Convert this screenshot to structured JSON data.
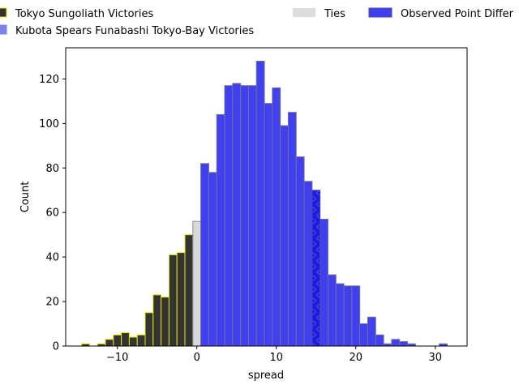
{
  "chart_data": {
    "type": "bar",
    "xlabel": "spread",
    "ylabel": "Count",
    "xlim": [
      -16.5,
      34
    ],
    "ylim": [
      0,
      134
    ],
    "xticks": [
      -10,
      0,
      10,
      20,
      30
    ],
    "yticks": [
      0,
      20,
      40,
      60,
      80,
      100,
      120
    ],
    "bin_width": 1,
    "legend_placement": "top, above plot",
    "series": [
      {
        "name": "Tokyo Sungoliath Victories",
        "fill": "#333333",
        "edge": "#e6e600",
        "bins": [
          {
            "x": -14,
            "count": 1
          },
          {
            "x": -13,
            "count": 0
          },
          {
            "x": -12,
            "count": 1
          },
          {
            "x": -11,
            "count": 3
          },
          {
            "x": -10,
            "count": 5
          },
          {
            "x": -9,
            "count": 6
          },
          {
            "x": -8,
            "count": 4
          },
          {
            "x": -7,
            "count": 5
          },
          {
            "x": -6,
            "count": 15
          },
          {
            "x": -5,
            "count": 23
          },
          {
            "x": -4,
            "count": 22
          },
          {
            "x": -3,
            "count": 41
          },
          {
            "x": -2,
            "count": 42
          },
          {
            "x": -1,
            "count": 50
          }
        ]
      },
      {
        "name": "Ties",
        "fill": "#d9d9d9",
        "edge": "#888888",
        "bins": [
          {
            "x": 0,
            "count": 56
          }
        ]
      },
      {
        "name": "Kubota Spears Funabashi Tokyo-Bay Victories",
        "fill": "#4040f0",
        "edge": "#707090",
        "bins": [
          {
            "x": 1,
            "count": 82
          },
          {
            "x": 2,
            "count": 78
          },
          {
            "x": 3,
            "count": 104
          },
          {
            "x": 4,
            "count": 117
          },
          {
            "x": 5,
            "count": 118
          },
          {
            "x": 6,
            "count": 117
          },
          {
            "x": 7,
            "count": 117
          },
          {
            "x": 8,
            "count": 128
          },
          {
            "x": 9,
            "count": 109
          },
          {
            "x": 10,
            "count": 116
          },
          {
            "x": 11,
            "count": 99
          },
          {
            "x": 12,
            "count": 105
          },
          {
            "x": 13,
            "count": 85
          },
          {
            "x": 14,
            "count": 74
          },
          {
            "x": 16,
            "count": 57
          },
          {
            "x": 17,
            "count": 32
          },
          {
            "x": 18,
            "count": 28
          },
          {
            "x": 19,
            "count": 27
          },
          {
            "x": 20,
            "count": 27
          },
          {
            "x": 21,
            "count": 10
          },
          {
            "x": 22,
            "count": 13
          },
          {
            "x": 23,
            "count": 5
          },
          {
            "x": 24,
            "count": 1
          },
          {
            "x": 25,
            "count": 3
          },
          {
            "x": 26,
            "count": 2
          },
          {
            "x": 27,
            "count": 1
          },
          {
            "x": 28,
            "count": 0
          },
          {
            "x": 29,
            "count": 0
          },
          {
            "x": 30,
            "count": 0
          },
          {
            "x": 31,
            "count": 1
          }
        ]
      },
      {
        "name": "Observed Point Differ",
        "fill": "#1a1aee",
        "edge": "#4a4a9a",
        "hatch": true,
        "bins": [
          {
            "x": 15,
            "count": 70
          }
        ]
      }
    ]
  }
}
